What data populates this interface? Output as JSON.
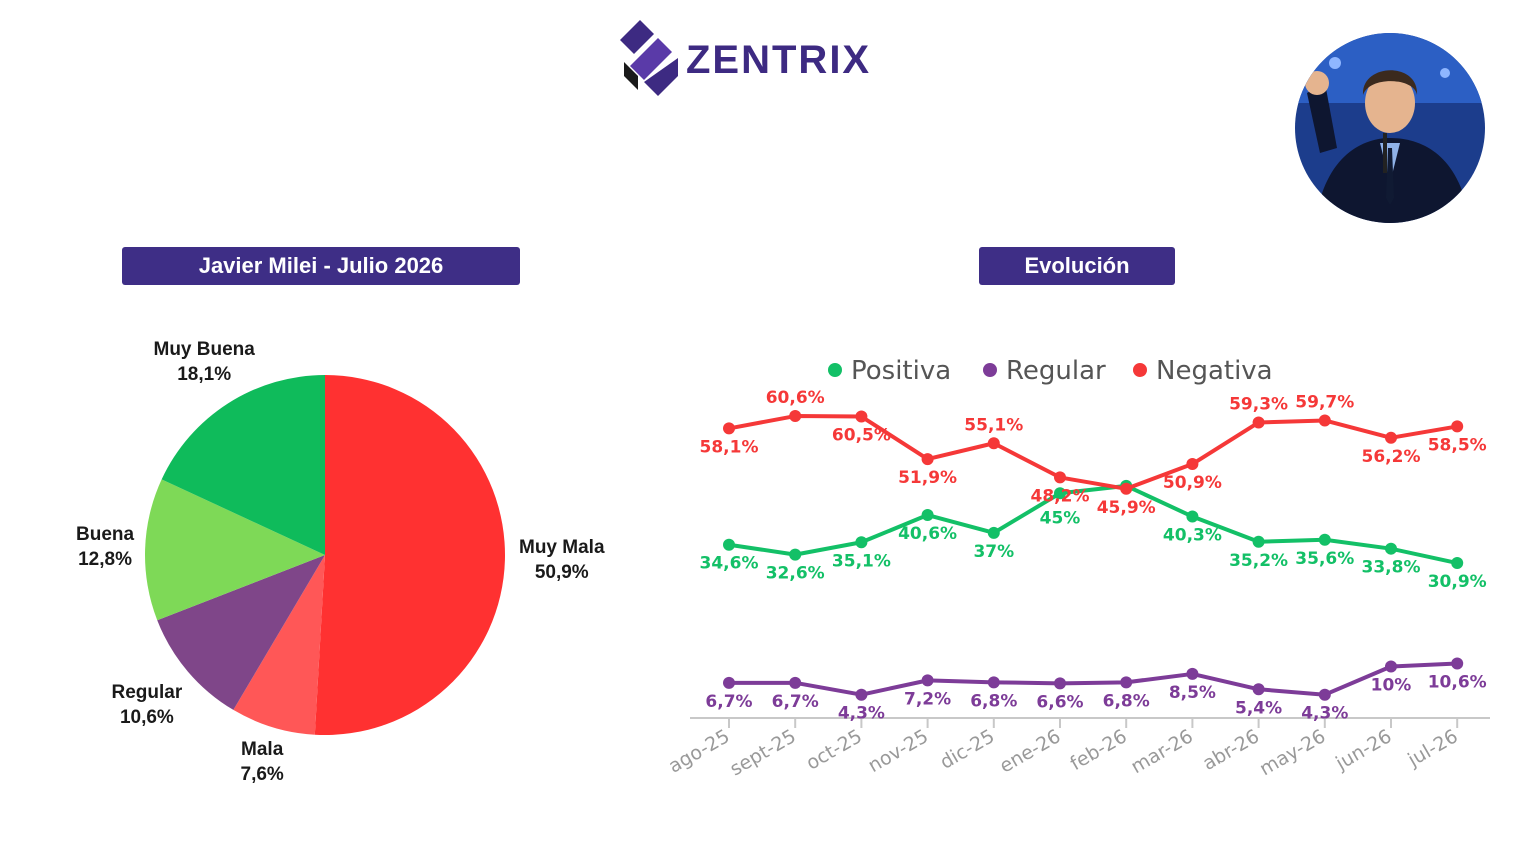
{
  "brand": {
    "name": "ZENTRIX"
  },
  "colors": {
    "title_bg": "#3e2e86",
    "muy_buena": "#0fbb5b",
    "buena": "#7ed957",
    "regular": "#7f4689",
    "mala": "#ff5757",
    "muy_mala": "#ff3131",
    "positiva": "#13c067",
    "regular_line": "#7d3c98",
    "negativa": "#f53838"
  },
  "photo": {
    "icon": "person-photo"
  },
  "chart_data": [
    {
      "type": "pie",
      "title": "Javier Milei - Julio 2026",
      "slices": [
        {
          "label": "Muy Mala",
          "value": 50.9,
          "display": "50,9%",
          "color": "#ff3131"
        },
        {
          "label": "Mala",
          "value": 7.6,
          "display": "7,6%",
          "color": "#ff5757"
        },
        {
          "label": "Regular",
          "value": 10.6,
          "display": "10,6%",
          "color": "#7f4689"
        },
        {
          "label": "Buena",
          "value": 12.8,
          "display": "12,8%",
          "color": "#7ed957"
        },
        {
          "label": "Muy Buena",
          "value": 18.1,
          "display": "18,1%",
          "color": "#0fbb5b"
        }
      ]
    },
    {
      "type": "line",
      "title": "Evolución",
      "legend_position": "top",
      "categories": [
        "ago-25",
        "sept-25",
        "oct-25",
        "nov-25",
        "dic-25",
        "ene-26",
        "feb-26",
        "mar-26",
        "abr-26",
        "may-26",
        "jun-26",
        "jul-26"
      ],
      "series": [
        {
          "name": "Positiva",
          "color": "#13c067",
          "values": [
            34.6,
            32.6,
            35.1,
            40.6,
            37,
            45,
            46.5,
            40.3,
            35.2,
            35.6,
            33.8,
            30.9
          ],
          "labels": [
            "34,6%",
            "32,6%",
            "35,1%",
            "40,6%",
            "37%",
            "45%",
            "",
            "40,3%",
            "35,2%",
            "35,6%",
            "33,8%",
            "30,9%"
          ]
        },
        {
          "name": "Regular",
          "color": "#7d3c98",
          "values": [
            6.7,
            6.7,
            4.3,
            7.2,
            6.8,
            6.6,
            6.8,
            8.5,
            5.4,
            4.3,
            10,
            10.6
          ],
          "labels": [
            "6,7%",
            "6,7%",
            "4,3%",
            "7,2%",
            "6,8%",
            "6,6%",
            "6,8%",
            "8,5%",
            "5,4%",
            "4,3%",
            "10%",
            "10,6%"
          ]
        },
        {
          "name": "Negativa",
          "color": "#f53838",
          "values": [
            58.1,
            60.6,
            60.5,
            51.9,
            55.1,
            48.2,
            45.9,
            50.9,
            59.3,
            59.7,
            56.2,
            58.5
          ],
          "labels": [
            "58,1%",
            "60,6%",
            "60,5%",
            "51,9%",
            "55,1%",
            "48,2%",
            "45,9%",
            "50,9%",
            "59,3%",
            "59,7%",
            "56,2%",
            "58,5%"
          ]
        }
      ]
    }
  ]
}
